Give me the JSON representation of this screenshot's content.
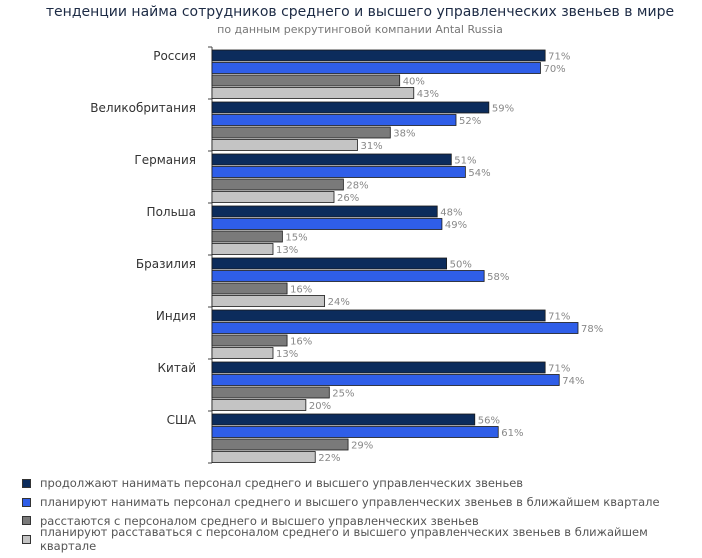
{
  "chart_data": {
    "type": "bar",
    "orientation": "horizontal",
    "title": "тенденции найма сотрудников среднего и высшего управленческих звеньев в мире",
    "subtitle": "по данным рекрутинговой компании Antal Russia",
    "categories": [
      "Россия",
      "Великобритания",
      "Германия",
      "Польша",
      "Бразилия",
      "Индия",
      "Китай",
      "США"
    ],
    "series": [
      {
        "name": "продолжают нанимать персонал среднего и высшего управленческих звеньев",
        "color": "#0c2c5c",
        "values": [
          71,
          59,
          51,
          48,
          50,
          71,
          71,
          56
        ]
      },
      {
        "name": "планируют нанимать персонал среднего и высшего управленческих звеньев в ближайшем квартале",
        "color": "#2f5ee8",
        "values": [
          70,
          52,
          54,
          49,
          58,
          78,
          74,
          61
        ]
      },
      {
        "name": "расстаются с персоналом среднего и высшего управленческих звеньев",
        "color": "#7a7a7a",
        "values": [
          40,
          38,
          28,
          15,
          16,
          16,
          25,
          29
        ]
      },
      {
        "name": "планируют расставаться с персоналом среднего и высшего управленческих звеньев в ближайшем квартале",
        "color": "#c4c4c4",
        "values": [
          43,
          31,
          26,
          13,
          24,
          13,
          20,
          22
        ]
      }
    ],
    "value_suffix": "%",
    "xlim": [
      0,
      80
    ],
    "grid": false,
    "legend_position": "bottom"
  }
}
